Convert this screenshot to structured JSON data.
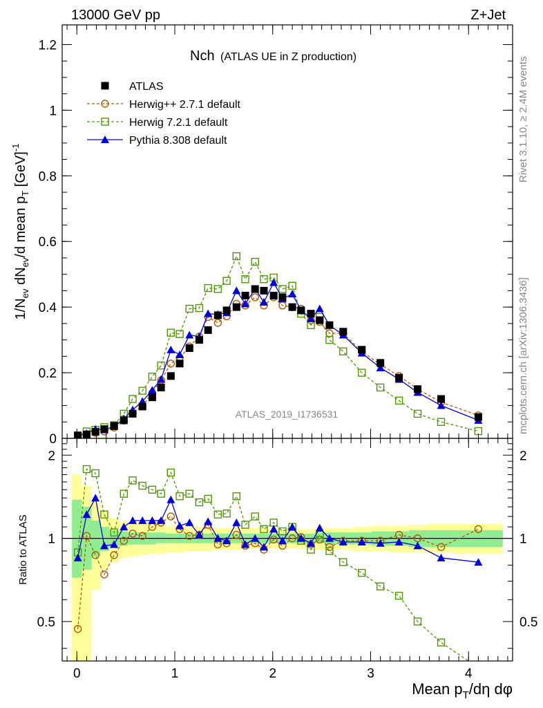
{
  "header": {
    "energy": "13000 GeV pp",
    "process": "Z+Jet"
  },
  "side_labels": {
    "rivet": "Rivet 3.1.10, ≥ 2.4M events",
    "mcplots": "mcplots.cern.ch [arXiv:1306.3436]"
  },
  "chart_data": [
    {
      "type": "scatter",
      "panel": "main",
      "title": "Nch",
      "subtitle": "(ATLAS UE in Z production)",
      "watermark": "ATLAS_2019_I1736531",
      "ylabel": "1/N_ev dN_ev/d mean p_T [GeV]^-1",
      "xlabel": "Mean p_T/dη dφ",
      "xlim": [
        -0.15,
        4.45
      ],
      "ylim": [
        0,
        1.26
      ],
      "yticks": [
        0,
        0.2,
        0.4,
        0.6,
        0.8,
        1,
        1.2
      ],
      "ytick_labels": [
        "0",
        "0.2",
        "0.4",
        "0.6",
        "0.8",
        "1",
        "1.2"
      ],
      "xticks": [
        0,
        1,
        2,
        3,
        4
      ],
      "xtick_labels": [
        "0",
        "1",
        "2",
        "3",
        "4"
      ],
      "legend_placement": "top-left",
      "x": [
        0.01,
        0.1,
        0.19,
        0.28,
        0.38,
        0.48,
        0.57,
        0.67,
        0.77,
        0.86,
        0.96,
        1.05,
        1.15,
        1.25,
        1.34,
        1.44,
        1.53,
        1.63,
        1.72,
        1.82,
        1.91,
        2.01,
        2.1,
        2.2,
        2.29,
        2.39,
        2.48,
        2.58,
        2.72,
        2.91,
        3.1,
        3.29,
        3.48,
        3.72,
        4.1
      ],
      "series": [
        {
          "name": "ATLAS",
          "color": "#000000",
          "marker": "filled-square",
          "values": [
            0.009,
            0.012,
            0.02,
            0.028,
            0.038,
            0.055,
            0.075,
            0.097,
            0.125,
            0.155,
            0.19,
            0.228,
            0.275,
            0.3,
            0.33,
            0.375,
            0.39,
            0.4,
            0.435,
            0.455,
            0.45,
            0.435,
            0.43,
            0.4,
            0.39,
            0.38,
            0.36,
            0.345,
            0.325,
            0.27,
            0.23,
            0.185,
            0.15,
            0.12,
            0.065
          ]
        },
        {
          "name": "Herwig++ 2.7.1 default",
          "color": "#b35900",
          "marker": "open-circle",
          "values": [
            0.004,
            0.012,
            0.017,
            0.021,
            0.033,
            0.054,
            0.078,
            0.099,
            0.138,
            0.177,
            0.228,
            0.246,
            0.28,
            0.31,
            0.37,
            0.352,
            0.372,
            0.41,
            0.405,
            0.43,
            0.405,
            0.43,
            0.405,
            0.4,
            0.395,
            0.36,
            0.355,
            0.32,
            0.32,
            0.265,
            0.225,
            0.19,
            0.15,
            0.11,
            0.07
          ]
        },
        {
          "name": "Herwig 7.2.1 default",
          "color": "#4c9900",
          "marker": "open-square",
          "values": [
            0.008,
            0.021,
            0.026,
            0.034,
            0.04,
            0.075,
            0.12,
            0.145,
            0.188,
            0.222,
            0.322,
            0.318,
            0.395,
            0.397,
            0.458,
            0.455,
            0.48,
            0.555,
            0.485,
            0.538,
            0.485,
            0.49,
            0.455,
            0.465,
            0.38,
            0.345,
            0.37,
            0.3,
            0.265,
            0.2,
            0.155,
            0.115,
            0.075,
            0.05,
            0.022
          ]
        },
        {
          "name": "Pythia 8.308 default",
          "color": "#0000dd",
          "marker": "filled-triangle",
          "values": [
            0.008,
            0.015,
            0.028,
            0.026,
            0.036,
            0.06,
            0.087,
            0.113,
            0.147,
            0.18,
            0.27,
            0.255,
            0.315,
            0.31,
            0.38,
            0.378,
            0.383,
            0.45,
            0.41,
            0.455,
            0.415,
            0.475,
            0.425,
            0.44,
            0.39,
            0.365,
            0.395,
            0.345,
            0.315,
            0.26,
            0.215,
            0.18,
            0.14,
            0.1,
            0.055
          ]
        }
      ]
    },
    {
      "type": "scatter",
      "panel": "ratio",
      "ylabel": "Ratio to ATLAS",
      "ylim": [
        0.36,
        2.3
      ],
      "yscale": "log",
      "yticks": [
        0.5,
        1,
        2
      ],
      "ytick_labels": [
        "0.5",
        "1",
        "2"
      ],
      "reference_line": 1,
      "uncertainty_bands": {
        "x_edges": [
          -0.05,
          0.05,
          0.15,
          0.24,
          0.33,
          0.43,
          0.52,
          0.62,
          0.72,
          0.81,
          0.91,
          1.0,
          1.1,
          1.2,
          1.29,
          1.39,
          1.48,
          1.58,
          1.67,
          1.77,
          1.86,
          1.96,
          2.05,
          2.15,
          2.24,
          2.34,
          2.43,
          2.53,
          2.63,
          2.82,
          3.01,
          3.2,
          3.39,
          3.58,
          3.86,
          4.35
        ],
        "inner_color": "#90ee90",
        "outer_color": "#ffff99",
        "inner_low": [
          0.72,
          0.77,
          0.86,
          0.9,
          0.93,
          0.94,
          0.95,
          0.95,
          0.95,
          0.96,
          0.96,
          0.96,
          0.96,
          0.96,
          0.96,
          0.96,
          0.96,
          0.96,
          0.96,
          0.96,
          0.96,
          0.96,
          0.96,
          0.96,
          0.96,
          0.96,
          0.96,
          0.95,
          0.95,
          0.95,
          0.94,
          0.94,
          0.93,
          0.93,
          0.93
        ],
        "inner_high": [
          1.38,
          1.3,
          1.16,
          1.1,
          1.07,
          1.06,
          1.05,
          1.05,
          1.05,
          1.05,
          1.04,
          1.04,
          1.04,
          1.04,
          1.04,
          1.04,
          1.04,
          1.04,
          1.04,
          1.04,
          1.04,
          1.04,
          1.04,
          1.04,
          1.04,
          1.04,
          1.05,
          1.05,
          1.05,
          1.05,
          1.06,
          1.06,
          1.07,
          1.07,
          1.07
        ],
        "outer_low": [
          0.35,
          0.35,
          0.65,
          0.77,
          0.82,
          0.85,
          0.86,
          0.87,
          0.88,
          0.88,
          0.89,
          0.89,
          0.9,
          0.9,
          0.9,
          0.91,
          0.91,
          0.91,
          0.91,
          0.92,
          0.92,
          0.92,
          0.92,
          0.92,
          0.92,
          0.92,
          0.91,
          0.91,
          0.91,
          0.9,
          0.9,
          0.89,
          0.89,
          0.89,
          0.88
        ],
        "outer_high": [
          1.7,
          1.55,
          1.35,
          1.25,
          1.18,
          1.15,
          1.14,
          1.13,
          1.12,
          1.12,
          1.11,
          1.1,
          1.1,
          1.1,
          1.1,
          1.09,
          1.09,
          1.09,
          1.09,
          1.09,
          1.09,
          1.08,
          1.08,
          1.08,
          1.08,
          1.08,
          1.09,
          1.09,
          1.09,
          1.1,
          1.11,
          1.11,
          1.12,
          1.13,
          1.13
        ]
      },
      "series": [
        {
          "name": "Herwig++ 2.7.1 default",
          "color": "#b35900",
          "values": [
            0.47,
            1.02,
            0.87,
            0.74,
            0.87,
            0.98,
            1.04,
            1.02,
            1.1,
            1.14,
            1.2,
            1.08,
            1.02,
            1.03,
            1.12,
            0.95,
            0.96,
            1.03,
            0.94,
            0.96,
            0.91,
            0.99,
            0.94,
            1.0,
            1.01,
            0.95,
            0.99,
            0.93,
            0.98,
            0.98,
            0.98,
            1.03,
            1.0,
            0.93,
            1.08
          ]
        },
        {
          "name": "Herwig 7.2.1 default",
          "color": "#4c9900",
          "values": [
            0.89,
            1.78,
            1.72,
            1.22,
            1.05,
            1.45,
            1.62,
            1.55,
            1.5,
            1.45,
            1.73,
            1.42,
            1.45,
            1.35,
            1.39,
            1.22,
            1.23,
            1.42,
            1.12,
            1.2,
            1.08,
            1.14,
            1.06,
            1.1,
            0.98,
            0.91,
            1.03,
            0.9,
            0.82,
            0.75,
            0.67,
            0.62,
            0.5,
            0.42,
            0.34
          ]
        },
        {
          "name": "Pythia 8.308 default",
          "color": "#0000dd",
          "values": [
            0.85,
            1.22,
            1.4,
            0.94,
            0.95,
            1.1,
            1.16,
            1.16,
            1.16,
            1.16,
            1.38,
            1.11,
            1.14,
            1.03,
            1.15,
            1.0,
            0.98,
            1.14,
            0.95,
            1.0,
            0.93,
            1.08,
            0.98,
            1.1,
            1.0,
            0.96,
            1.09,
            1.0,
            0.97,
            0.97,
            0.96,
            0.97,
            0.94,
            0.85,
            0.82
          ]
        }
      ]
    }
  ]
}
